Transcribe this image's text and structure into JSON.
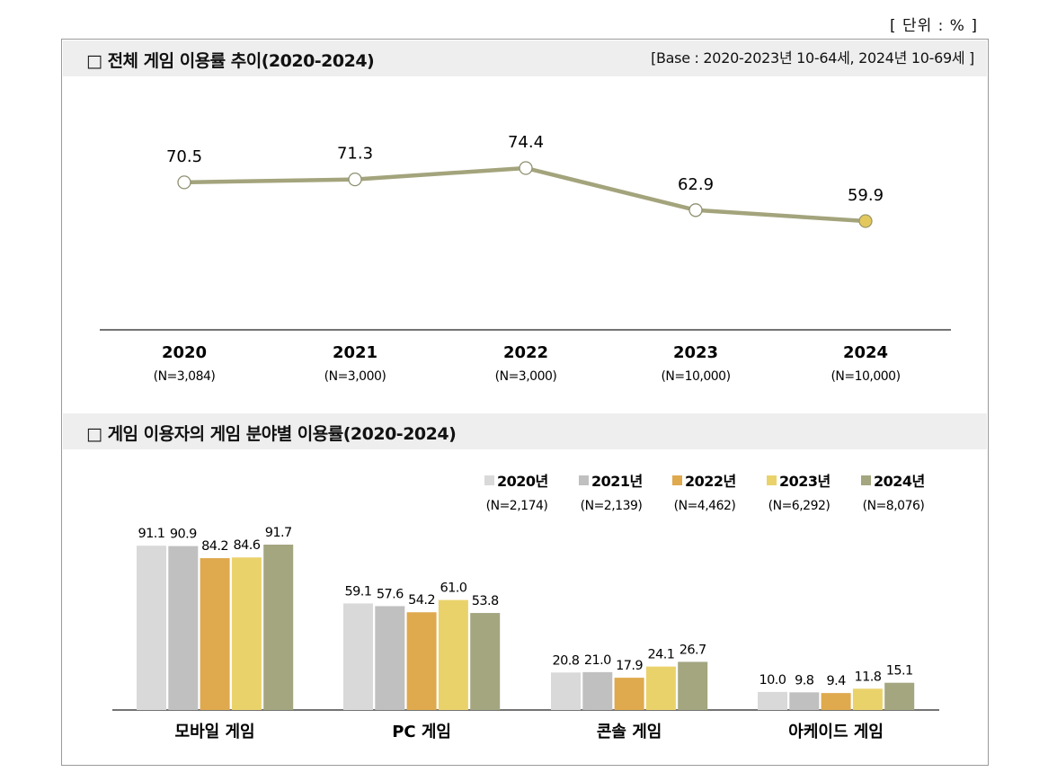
{
  "unit_label": "[ 단위 : % ]",
  "sections": {
    "top": {
      "title": "□  전체 게임 이용률 추이(2020-2024)",
      "base_note": "[Base : 2020-2023년 10-64세, 2024년 10-69세 ]"
    },
    "bottom": {
      "title": "□  게임 이용자의 게임 분야별 이용률(2020-2024)"
    }
  },
  "chart_data": [
    {
      "type": "line",
      "x": [
        "2020",
        "2021",
        "2022",
        "2023",
        "2024"
      ],
      "x_sublabels": [
        "(N=3,084)",
        "(N=3,000)",
        "(N=3,000)",
        "(N=10,000)",
        "(N=10,000)"
      ],
      "values": [
        70.5,
        71.3,
        74.4,
        62.9,
        59.9
      ],
      "labels": [
        "70.5",
        "71.3",
        "74.4",
        "62.9",
        "59.9"
      ],
      "ylim": [
        45,
        80
      ],
      "line_color": "#a3a47c",
      "highlight_color": "#e3c85e",
      "highlight_index": 4,
      "grid": false
    },
    {
      "type": "bar",
      "categories": [
        "모바일 게임",
        "PC 게임",
        "콘솔 게임",
        "아케이드 게임"
      ],
      "series": [
        {
          "name": "2020년",
          "n": "(N=2,174)",
          "color": "#d9d9d9",
          "values": [
            91.1,
            59.1,
            20.8,
            10.0
          ],
          "labels": [
            "91.1",
            "59.1",
            "20.8",
            "10.0"
          ]
        },
        {
          "name": "2021년",
          "n": "(N=2,139)",
          "color": "#c0c0c0",
          "values": [
            90.9,
            57.6,
            21.0,
            9.8
          ],
          "labels": [
            "90.9",
            "57.6",
            "21.0",
            "9.8"
          ]
        },
        {
          "name": "2022년",
          "n": "(N=4,462)",
          "color": "#dfa94e",
          "values": [
            84.2,
            54.2,
            17.9,
            9.4
          ],
          "labels": [
            "84.2",
            "54.2",
            "17.9",
            "9.4"
          ]
        },
        {
          "name": "2023년",
          "n": "(N=6,292)",
          "color": "#ead26b",
          "values": [
            84.6,
            61.0,
            24.1,
            11.8
          ],
          "labels": [
            "84.6",
            "61.0",
            "24.1",
            "11.8"
          ]
        },
        {
          "name": "2024년",
          "n": "(N=8,076)",
          "color": "#a3a67f",
          "values": [
            91.7,
            53.8,
            26.7,
            15.1
          ],
          "labels": [
            "91.7",
            "53.8",
            "26.7",
            "15.1"
          ]
        }
      ],
      "ylim": [
        0,
        100
      ],
      "legend_position": "top-right",
      "grid": false
    }
  ]
}
